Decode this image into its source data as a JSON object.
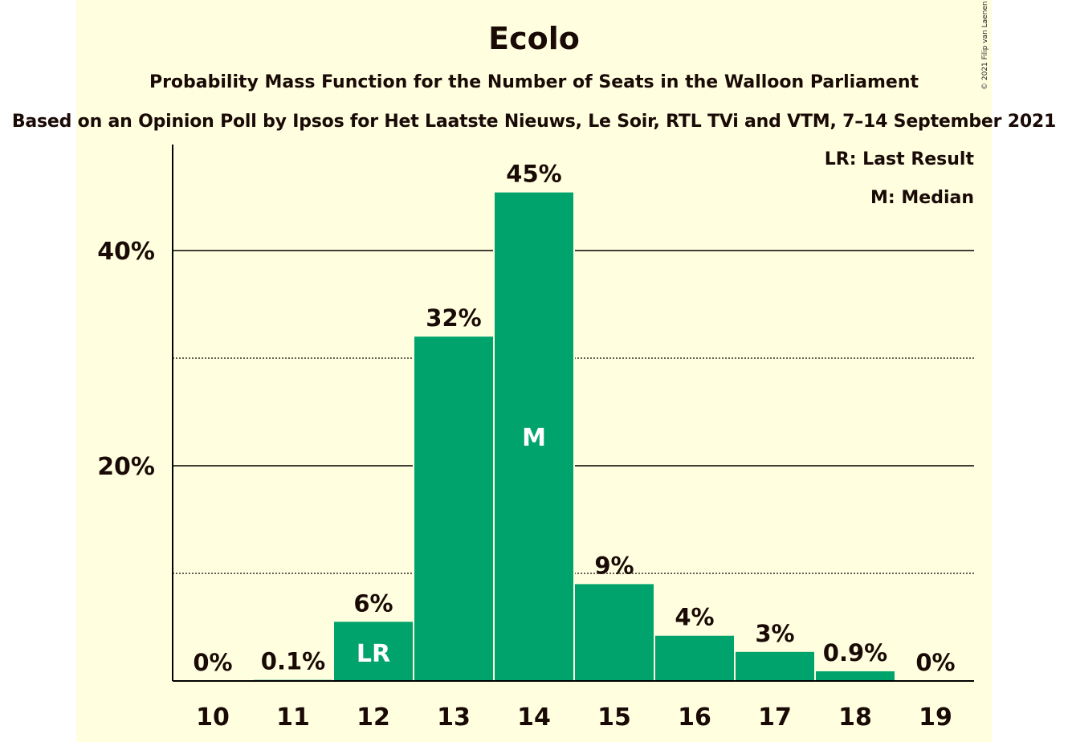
{
  "header": {
    "title": "Ecolo",
    "subtitle": "Probability Mass Function for the Number of Seats in the Walloon Parliament",
    "source": "Based on an Opinion Poll by Ipsos for Het Laatste Nieuws, Le Soir, RTL TVi and VTM, 7–14 September 2021",
    "copyright": "© 2021 Filip van Laenen"
  },
  "legend": {
    "last_result": "LR: Last Result",
    "median": "M: Median"
  },
  "colors": {
    "bar": "#00a36c",
    "background": "#ffffe0",
    "text": "#1a0a05"
  },
  "chart_data": {
    "type": "bar",
    "categories": [
      "10",
      "11",
      "12",
      "13",
      "14",
      "15",
      "16",
      "17",
      "18",
      "19"
    ],
    "values": [
      0,
      0.1,
      5.5,
      32,
      45.4,
      9,
      4.2,
      2.7,
      0.9,
      0
    ],
    "data_labels": [
      "0%",
      "0.1%",
      "6%",
      "32%",
      "45%",
      "9%",
      "4%",
      "3%",
      "0.9%",
      "0%"
    ],
    "bar_markers": [
      "",
      "",
      "LR",
      "",
      "M",
      "",
      "",
      "",
      "",
      ""
    ],
    "y_ticks": [
      {
        "value": 20,
        "label": "20%"
      },
      {
        "value": 40,
        "label": "40%"
      }
    ],
    "minor_gridlines": [
      10,
      30
    ],
    "ylim": [
      0,
      49.3
    ],
    "title": "Ecolo",
    "xlabel": "",
    "ylabel": ""
  }
}
